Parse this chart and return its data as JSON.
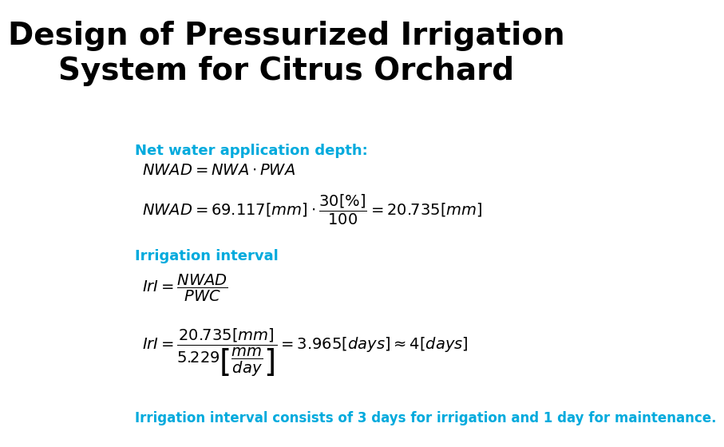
{
  "title_line1": "Design of Pressurized Irrigation",
  "title_line2": "System for Citrus Orchard",
  "title_fontsize": 28,
  "title_color": "#000000",
  "section1_label": "Net water application depth:",
  "section1_color": "#00AADD",
  "section1_fontsize": 13,
  "formula1a": "$NWAD = NWA \\cdot PWA$",
  "formula1b": "$NWAD = 69.117\\left[mm\\right]\\cdot\\dfrac{30\\left[\\%\\right]}{100} = 20.735\\left[mm\\right]$",
  "section2_label": "Irrigation interval",
  "section2_color": "#00AADD",
  "section2_fontsize": 13,
  "formula2a": "$IrI = \\dfrac{NWAD}{PWC}$",
  "formula2b": "$IrI = \\dfrac{20.735\\left[mm\\right]}{5.229\\left[\\dfrac{mm}{day}\\right]} = 3.965\\left[days\\right] \\approx 4\\left[days\\right]$",
  "footer": "Irrigation interval consists of 3 days for irrigation and 1 day for maintenance.",
  "footer_color": "#00AADD",
  "footer_fontsize": 12,
  "formula_fontsize": 14,
  "bg_color": "#ffffff"
}
